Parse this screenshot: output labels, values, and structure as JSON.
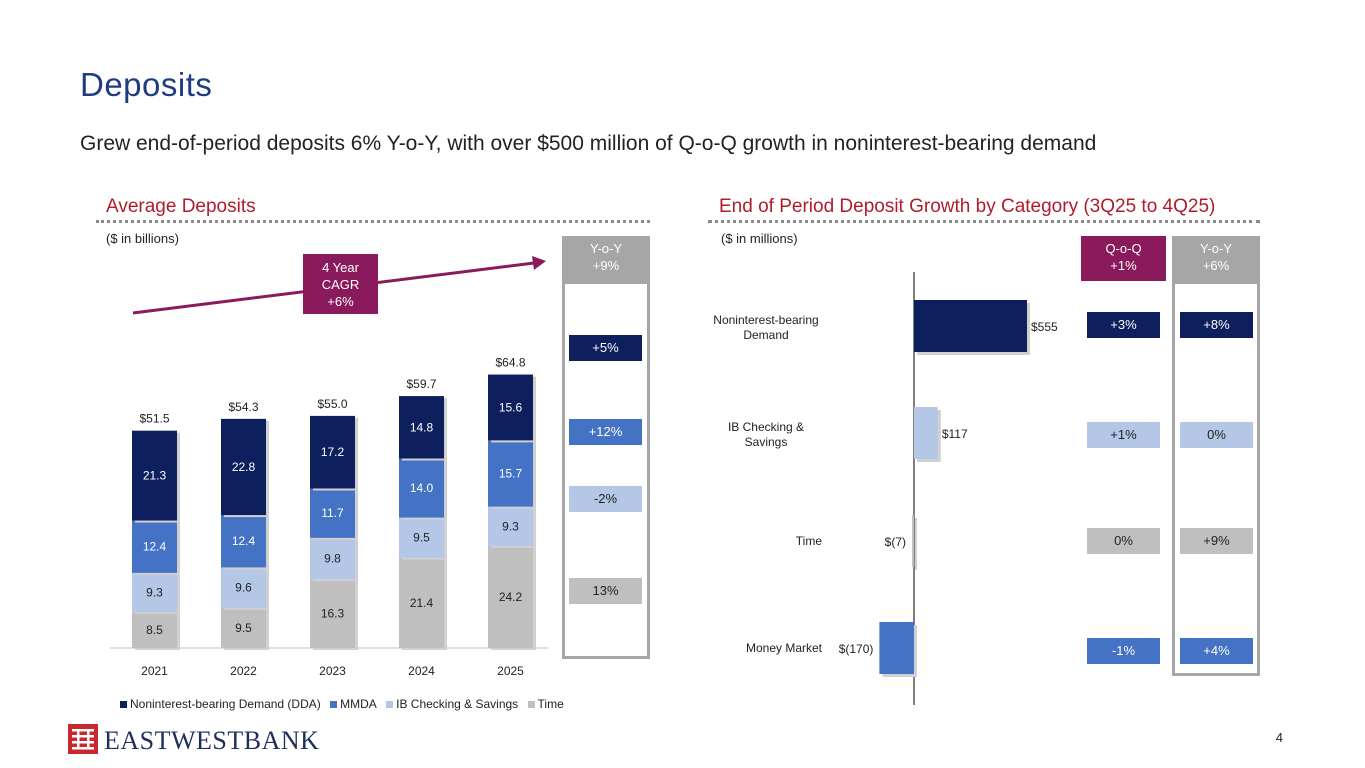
{
  "page": {
    "title": "Deposits",
    "subtitle": "Grew end-of-period deposits 6% Y-o-Y, with over $500 million of Q-o-Q growth in noninterest-bearing demand",
    "page_number": "4"
  },
  "brand": {
    "name": "EASTWESTBANK",
    "color": "#1f2f5c",
    "accent": "#c8282e"
  },
  "colors": {
    "dda": "#0d1f5c",
    "mmda": "#4472c4",
    "ib": "#b4c7e7",
    "time": "#bfbfbf",
    "purple": "#8b1a5c",
    "section_red": "#b11c2b",
    "title_blue": "#1f3c82"
  },
  "left": {
    "section_title": "Average Deposits",
    "units": "($ in billions)",
    "cagr": {
      "line1": "4 Year",
      "line2": "CAGR",
      "line3": "+6%"
    },
    "yoy_header": {
      "line1": "Y-o-Y",
      "line2": "+9%"
    },
    "yoy_values": [
      {
        "label": "+5%",
        "color": "#0d1f5c"
      },
      {
        "label": "+12%",
        "color": "#4472c4"
      },
      {
        "label": "-2%",
        "color": "#b4c7e7"
      },
      {
        "label": "13%",
        "color": "#bfbfbf"
      }
    ]
  },
  "right": {
    "section_title": "End of Period Deposit Growth by Category (3Q25 to 4Q25)",
    "units": "($ in millions)",
    "qoq_header": {
      "line1": "Q-o-Q",
      "line2": "+1%"
    },
    "yoy_header": {
      "line1": "Y-o-Y",
      "line2": "+6%"
    },
    "rows": [
      {
        "qoq": "+3%",
        "yoy": "+8%",
        "color": "#0d1f5c"
      },
      {
        "qoq": "+1%",
        "yoy": "0%",
        "color": "#b4c7e7"
      },
      {
        "qoq": "0%",
        "yoy": "+9%",
        "color": "#bfbfbf"
      },
      {
        "qoq": "-1%",
        "yoy": "+4%",
        "color": "#4472c4"
      }
    ]
  },
  "chart_data": [
    {
      "type": "bar",
      "stacked": true,
      "title": "Average Deposits",
      "ylabel": "($ in billions)",
      "categories": [
        "2021",
        "2022",
        "2023",
        "2024",
        "2025"
      ],
      "totals": [
        "$51.5",
        "$54.3",
        "$55.0",
        "$59.7",
        "$64.8"
      ],
      "total_values": [
        51.5,
        54.3,
        55.0,
        59.7,
        64.8
      ],
      "ylim": [
        0,
        70
      ],
      "series": [
        {
          "name": "Time",
          "color": "#bfbfbf",
          "values": [
            8.5,
            9.5,
            16.3,
            21.4,
            24.2
          ]
        },
        {
          "name": "IB Checking & Savings",
          "color": "#b4c7e7",
          "values": [
            9.3,
            9.6,
            9.8,
            9.5,
            9.3
          ]
        },
        {
          "name": "MMDA",
          "color": "#4472c4",
          "values": [
            12.4,
            12.4,
            11.7,
            14.0,
            15.7
          ]
        },
        {
          "name": "Noninterest-bearing Demand (DDA)",
          "color": "#0d1f5c",
          "values": [
            21.3,
            22.8,
            17.2,
            14.8,
            15.6
          ]
        }
      ],
      "legend_order": [
        "Noninterest-bearing Demand (DDA)",
        "MMDA",
        "IB Checking & Savings",
        "Time"
      ],
      "legend_position": "bottom"
    },
    {
      "type": "bar",
      "orientation": "horizontal",
      "title": "End of Period Deposit Growth by Category (3Q25 to 4Q25)",
      "xlabel": "($ in millions)",
      "categories": [
        {
          "line1": "Noninterest-bearing",
          "line2": "Demand"
        },
        {
          "line1": "IB Checking &",
          "line2": "Savings"
        },
        {
          "line1": "Time",
          "line2": ""
        },
        {
          "line1": "Money Market",
          "line2": ""
        }
      ],
      "values": [
        555,
        117,
        -7,
        -170
      ],
      "value_labels": [
        "$555",
        "$117",
        "$(7)",
        "$(170)"
      ],
      "colors": [
        "#0d1f5c",
        "#b4c7e7",
        "#bfbfbf",
        "#4472c4"
      ],
      "xlim": [
        -170,
        555
      ]
    }
  ]
}
